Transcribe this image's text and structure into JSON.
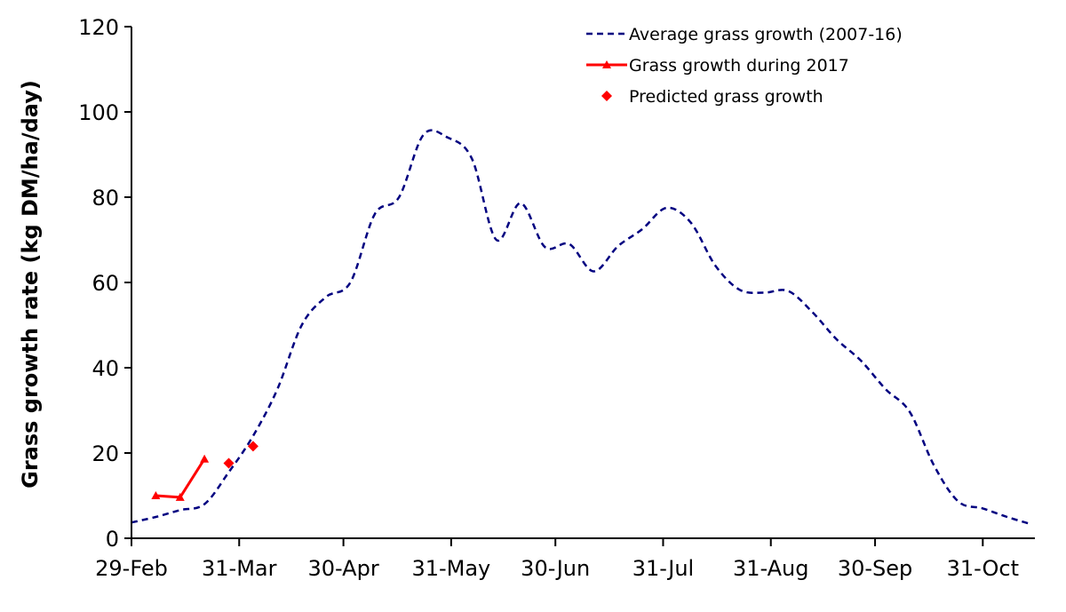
{
  "chart_data": {
    "type": "line",
    "title": "",
    "xlabel": "",
    "ylabel": "Grass growth rate (kg DM/ha/day)",
    "ylim": [
      0,
      120
    ],
    "yticks": [
      0,
      20,
      40,
      60,
      80,
      100,
      120
    ],
    "xlim": [
      "2016-02-29",
      "2016-11-15"
    ],
    "xticks": [
      {
        "label": "29-Feb",
        "date": "2016-02-29"
      },
      {
        "label": "31-Mar",
        "date": "2016-03-31"
      },
      {
        "label": "30-Apr",
        "date": "2016-04-30"
      },
      {
        "label": "31-May",
        "date": "2016-05-31"
      },
      {
        "label": "30-Jun",
        "date": "2016-06-30"
      },
      {
        "label": "31-Jul",
        "date": "2016-07-31"
      },
      {
        "label": "31-Aug",
        "date": "2016-08-31"
      },
      {
        "label": "30-Sep",
        "date": "2016-09-30"
      },
      {
        "label": "31-Oct",
        "date": "2016-10-31"
      }
    ],
    "grid": false,
    "legend_position": "top-right",
    "colors": {
      "average": "#000080",
      "year2017": "#ff0000",
      "predicted": "#ff0000"
    },
    "series": [
      {
        "name": "Average grass growth (2007-16)",
        "style": "dashed",
        "points": [
          {
            "x": "2016-02-29",
            "y": 3.7
          },
          {
            "x": "2016-03-07",
            "y": 5.0
          },
          {
            "x": "2016-03-14",
            "y": 6.6
          },
          {
            "x": "2016-03-21",
            "y": 8.0
          },
          {
            "x": "2016-03-28",
            "y": 15.5
          },
          {
            "x": "2016-04-04",
            "y": 24.0
          },
          {
            "x": "2016-04-11",
            "y": 35.0
          },
          {
            "x": "2016-04-18",
            "y": 50.0
          },
          {
            "x": "2016-04-25",
            "y": 56.6
          },
          {
            "x": "2016-05-02",
            "y": 60.0
          },
          {
            "x": "2016-05-09",
            "y": 76.0
          },
          {
            "x": "2016-05-16",
            "y": 80.0
          },
          {
            "x": "2016-05-23",
            "y": 94.6
          },
          {
            "x": "2016-05-30",
            "y": 94.0
          },
          {
            "x": "2016-06-06",
            "y": 89.0
          },
          {
            "x": "2016-06-13",
            "y": 70.0
          },
          {
            "x": "2016-06-20",
            "y": 78.6
          },
          {
            "x": "2016-06-27",
            "y": 68.3
          },
          {
            "x": "2016-07-04",
            "y": 69.0
          },
          {
            "x": "2016-07-11",
            "y": 62.6
          },
          {
            "x": "2016-07-18",
            "y": 68.5
          },
          {
            "x": "2016-07-25",
            "y": 72.5
          },
          {
            "x": "2016-08-01",
            "y": 77.5
          },
          {
            "x": "2016-08-08",
            "y": 74.0
          },
          {
            "x": "2016-08-15",
            "y": 64.0
          },
          {
            "x": "2016-08-22",
            "y": 58.3
          },
          {
            "x": "2016-08-29",
            "y": 57.6
          },
          {
            "x": "2016-09-05",
            "y": 58.0
          },
          {
            "x": "2016-09-12",
            "y": 53.0
          },
          {
            "x": "2016-09-19",
            "y": 46.6
          },
          {
            "x": "2016-09-26",
            "y": 41.6
          },
          {
            "x": "2016-10-03",
            "y": 35.0
          },
          {
            "x": "2016-10-10",
            "y": 29.6
          },
          {
            "x": "2016-10-17",
            "y": 17.0
          },
          {
            "x": "2016-10-24",
            "y": 8.6
          },
          {
            "x": "2016-10-31",
            "y": 7.0
          },
          {
            "x": "2016-11-07",
            "y": 5.0
          },
          {
            "x": "2016-11-14",
            "y": 3.3
          }
        ]
      },
      {
        "name": "Grass growth during 2017",
        "style": "solid-triangle-markers",
        "points": [
          {
            "x": "2016-03-07",
            "y": 10.0
          },
          {
            "x": "2016-03-14",
            "y": 9.6
          },
          {
            "x": "2016-03-21",
            "y": 18.6
          }
        ]
      },
      {
        "name": "Predicted grass growth",
        "style": "diamond-markers",
        "points": [
          {
            "x": "2016-03-28",
            "y": 17.6
          },
          {
            "x": "2016-04-04",
            "y": 21.6
          }
        ]
      }
    ]
  }
}
